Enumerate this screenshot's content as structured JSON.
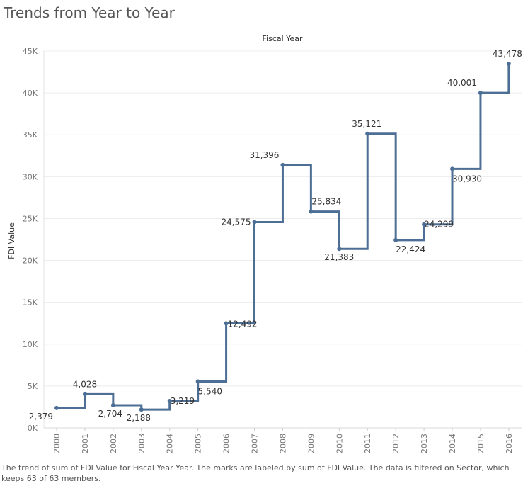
{
  "page": {
    "title": "Trends from Year to Year",
    "caption": "The trend of sum of FDI Value for Fiscal Year Year.  The marks are labeled by sum of FDI Value. The data is filtered on Sector, which keeps 63 of 63 members."
  },
  "colors": {
    "line": "#4e6f95",
    "grid": "#ececec",
    "axis_text": "#777777",
    "label_text": "#333333"
  },
  "chart_data": {
    "type": "line",
    "line_shape": "step",
    "title": "Fiscal Year",
    "xlabel": "",
    "ylabel": "FDI Value",
    "x": [
      "2000",
      "2001",
      "2002",
      "2003",
      "2004",
      "2005",
      "2006",
      "2007",
      "2008",
      "2009",
      "2010",
      "2011",
      "2012",
      "2013",
      "2014",
      "2015",
      "2016"
    ],
    "values": [
      2379,
      4028,
      2704,
      2188,
      3219,
      5540,
      12492,
      24575,
      31396,
      25834,
      21383,
      35121,
      22424,
      24299,
      30930,
      40001,
      43478
    ],
    "labels": [
      "2,379",
      "4,028",
      "2,704",
      "2,188",
      "3,219",
      "5,540",
      "12,492",
      "24,575",
      "31,396",
      "25,834",
      "21,383",
      "35,121",
      "22,424",
      "24,299",
      "30,930",
      "40,001",
      "43,478"
    ],
    "ylim": [
      0,
      45000
    ],
    "y_ticks": [
      0,
      5000,
      10000,
      15000,
      20000,
      25000,
      30000,
      35000,
      40000,
      45000
    ],
    "y_tick_labels": [
      "0K",
      "5K",
      "10K",
      "15K",
      "20K",
      "25K",
      "30K",
      "35K",
      "40K",
      "45K"
    ],
    "grid": true,
    "legend": "none"
  }
}
